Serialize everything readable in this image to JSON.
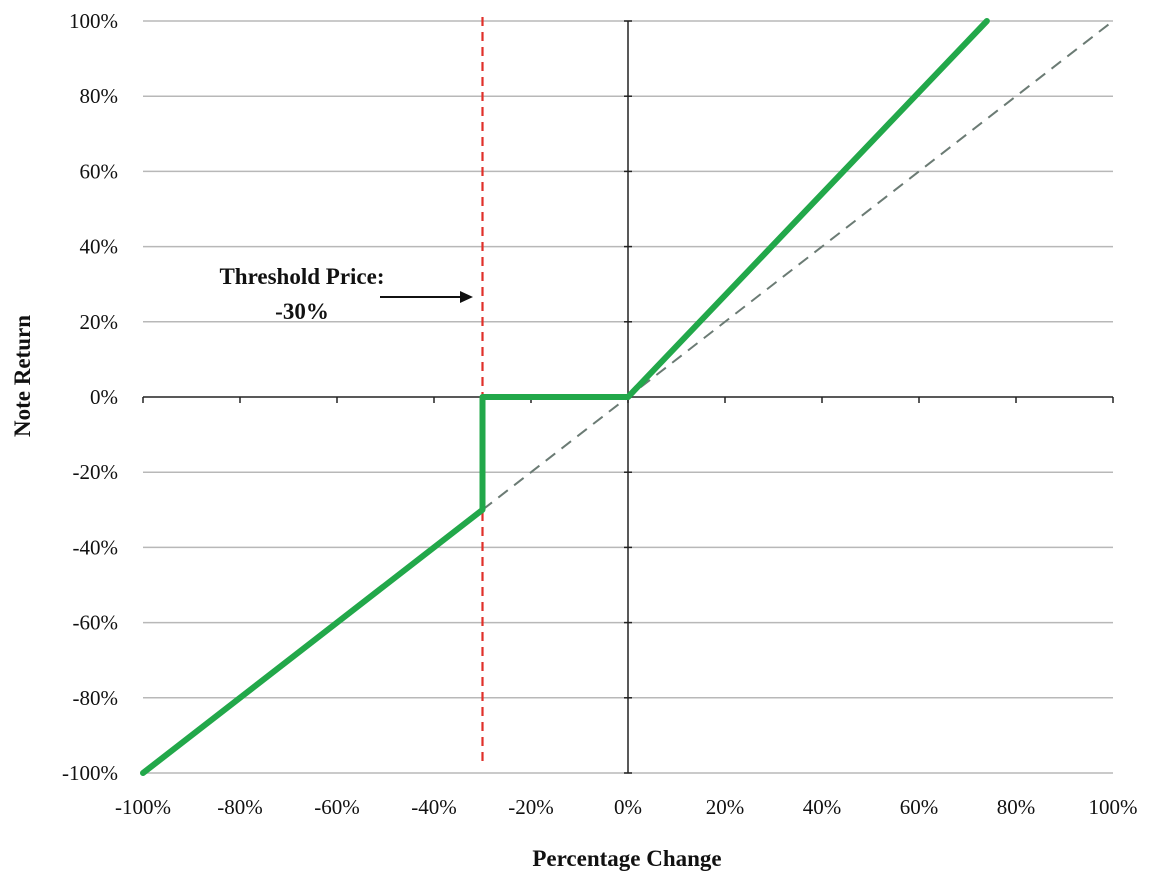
{
  "chart_data": {
    "type": "line",
    "xlabel": "Percentage Change",
    "ylabel": "Note Return",
    "xlim": [
      -100,
      100
    ],
    "ylim": [
      -100,
      100
    ],
    "x_ticks": [
      "-100%",
      "-80%",
      "-60%",
      "-40%",
      "-20%",
      "0%",
      "20%",
      "40%",
      "60%",
      "80%",
      "100%"
    ],
    "y_ticks": [
      "100%",
      "80%",
      "60%",
      "40%",
      "20%",
      "0%",
      "-20%",
      "-40%",
      "-60%",
      "-80%",
      "-100%"
    ],
    "grid": "horizontal",
    "series": [
      {
        "style": "solid",
        "color": "#22a84a",
        "points": [
          [
            -100,
            -100
          ],
          [
            -30,
            -30
          ],
          [
            -30,
            0
          ],
          [
            0,
            0
          ],
          [
            74,
            100
          ]
        ]
      },
      {
        "style": "dashed",
        "color": "#6b7b74",
        "points": [
          [
            -30,
            -30
          ],
          [
            100,
            100
          ]
        ]
      }
    ],
    "threshold": {
      "x": -30,
      "color": "#e0302a"
    },
    "annotation": {
      "line1": "Threshold Price:",
      "line2": "-30%"
    }
  }
}
